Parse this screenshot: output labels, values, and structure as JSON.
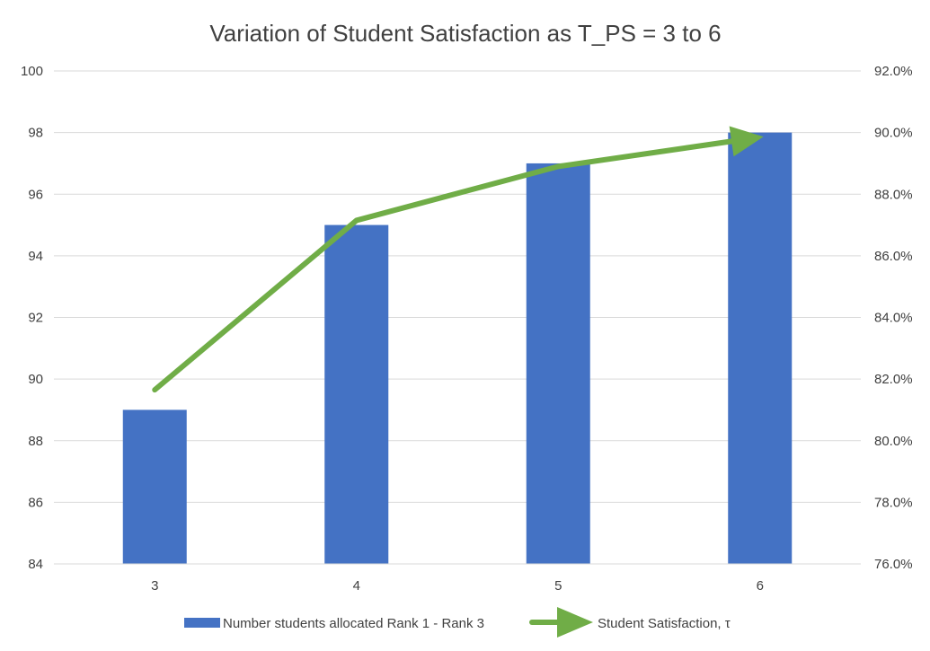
{
  "chart_data": {
    "type": "bar",
    "title": "Variation of Student Satisfaction as T_PS = 3 to 6",
    "categories": [
      "3",
      "4",
      "5",
      "6"
    ],
    "ylim": [
      84,
      100
    ],
    "y_ticks": [
      "84",
      "86",
      "88",
      "90",
      "92",
      "94",
      "96",
      "98",
      "100"
    ],
    "y2lim": [
      0.76,
      0.92
    ],
    "y2_ticks": [
      "76.0%",
      "78.0%",
      "80.0%",
      "82.0%",
      "84.0%",
      "86.0%",
      "88.0%",
      "90.0%",
      "92.0%"
    ],
    "grid": true,
    "legend_position": "bottom",
    "series": [
      {
        "name": "Number students allocated Rank 1 - Rank 3",
        "type": "bar",
        "axis": "left",
        "color": "#4472c4",
        "values": [
          89,
          95,
          97,
          98
        ]
      },
      {
        "name": "Student Satisfaction, τ",
        "type": "line",
        "axis": "right",
        "color": "#70ad47",
        "end_marker": "arrow",
        "values": [
          0.8165,
          0.8715,
          0.889,
          0.8985
        ]
      }
    ]
  }
}
